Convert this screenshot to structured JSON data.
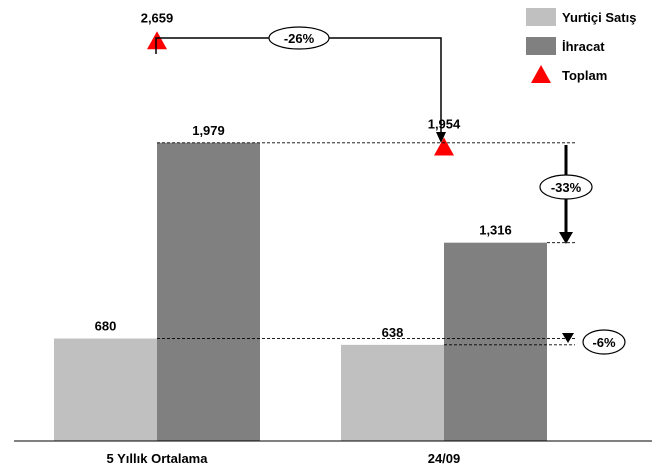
{
  "chart_data": {
    "type": "bar",
    "categories": [
      "5 Yıllık Ortalama",
      "24/09"
    ],
    "series": [
      {
        "name": "Yurtiçi Satış",
        "values": [
          680,
          638
        ],
        "labels": [
          "680",
          "638"
        ],
        "color": "#c0c0c0"
      },
      {
        "name": "İhracat",
        "values": [
          1979,
          1316
        ],
        "labels": [
          "1,979",
          "1,316"
        ],
        "color": "#808080"
      }
    ],
    "totals": {
      "name": "Toplam",
      "values": [
        2659,
        1954
      ],
      "labels": [
        "2,659",
        "1,954"
      ],
      "color": "#ff0000",
      "marker": "triangle"
    },
    "annotations": [
      {
        "text": "-26%",
        "from": "Toplam 5 Yıllık Ortalama",
        "to": "Toplam 24/09"
      },
      {
        "text": "-33%",
        "from": "İhracat 5 Yıllık Ortalama",
        "to": "İhracat 24/09"
      },
      {
        "text": "-6%",
        "from": "Yurtiçi Satış 5 Yıllık Ortalama",
        "to": "Yurtiçi Satış 24/09"
      }
    ],
    "legend": {
      "position": "top-right",
      "items": [
        "Yurtiçi Satış",
        "İhracat",
        "Toplam"
      ]
    },
    "ylim": [
      0,
      2600
    ],
    "grid": false,
    "title": "",
    "xlabel": "",
    "ylabel": ""
  }
}
